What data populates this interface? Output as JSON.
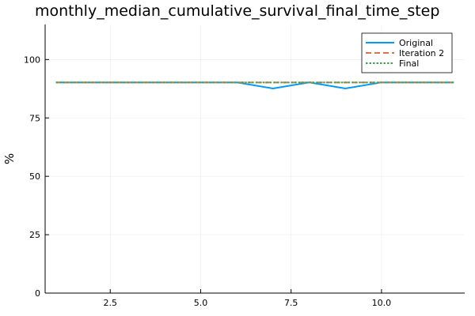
{
  "chart_data": {
    "type": "line",
    "title": "monthly_median_cumulative_survival_final_time_step",
    "xlabel": "",
    "ylabel": "%",
    "xlim": [
      0.7,
      12.3
    ],
    "ylim": [
      0,
      115
    ],
    "x_ticks": [
      2.5,
      5.0,
      7.5,
      10.0
    ],
    "x_tick_labels": [
      "2.5",
      "5.0",
      "7.5",
      "10.0"
    ],
    "y_ticks": [
      0,
      25,
      50,
      75,
      100
    ],
    "y_tick_labels": [
      "0",
      "25",
      "50",
      "75",
      "100"
    ],
    "grid": true,
    "legend_position": "top-right",
    "x": [
      1,
      2,
      3,
      4,
      5,
      6,
      7,
      8,
      9,
      10,
      11,
      12
    ],
    "series": [
      {
        "name": "Original",
        "color": "#009AFA",
        "dash": "solid",
        "values": [
          90.2,
          90.2,
          90.2,
          90.2,
          90.2,
          90.2,
          87.6,
          90.2,
          87.6,
          90.2,
          90.2,
          90.2
        ]
      },
      {
        "name": "Iteration 2",
        "color": "#E26F46",
        "dash": "dashed",
        "values": [
          90.2,
          90.2,
          90.2,
          90.2,
          90.2,
          90.2,
          90.2,
          90.2,
          90.2,
          90.2,
          90.2,
          90.2
        ]
      },
      {
        "name": "Final",
        "color": "#3DA44D",
        "dash": "dotted",
        "values": [
          90.2,
          90.2,
          90.2,
          90.2,
          90.2,
          90.2,
          90.2,
          90.2,
          90.2,
          90.2,
          90.2,
          90.2
        ]
      }
    ]
  }
}
